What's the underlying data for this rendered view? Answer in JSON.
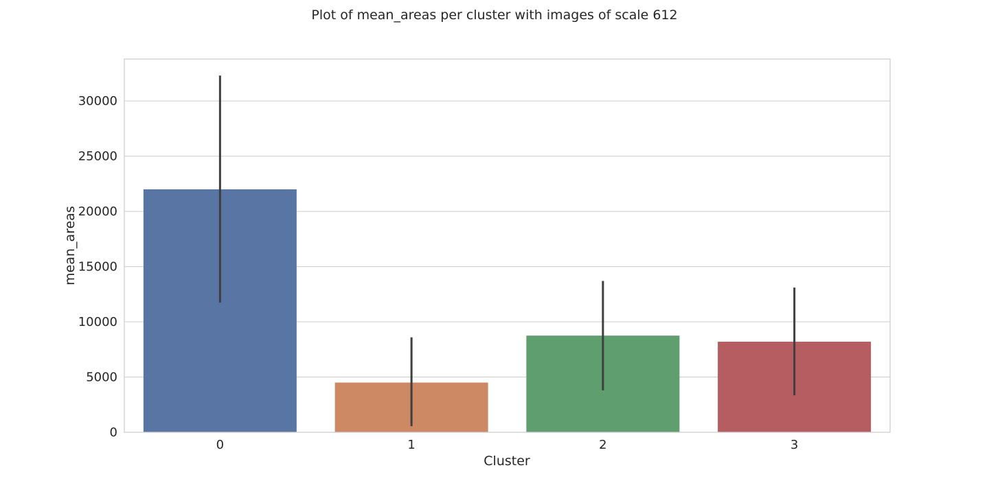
{
  "chart_data": {
    "type": "bar",
    "title": "Plot of mean_areas per cluster with images of scale 612",
    "xlabel": "Cluster",
    "ylabel": "mean_areas",
    "categories": [
      "0",
      "1",
      "2",
      "3"
    ],
    "values": [
      22000,
      4500,
      8750,
      8200
    ],
    "error_low": [
      11750,
      550,
      3800,
      3350
    ],
    "error_high": [
      32300,
      8600,
      13700,
      13100
    ],
    "colors": [
      "#5975a4",
      "#cc8963",
      "#5f9e6e",
      "#b55d60"
    ],
    "error_color": "#3f3f3f",
    "ylim": [
      0,
      33800
    ],
    "yticks": [
      0,
      5000,
      10000,
      15000,
      20000,
      25000,
      30000
    ],
    "ytick_labels": [
      "0",
      "5000",
      "10000",
      "15000",
      "20000",
      "25000",
      "30000"
    ],
    "grid": true,
    "grid_axis": "y",
    "grid_color": "#cccccc",
    "legend": "none"
  }
}
